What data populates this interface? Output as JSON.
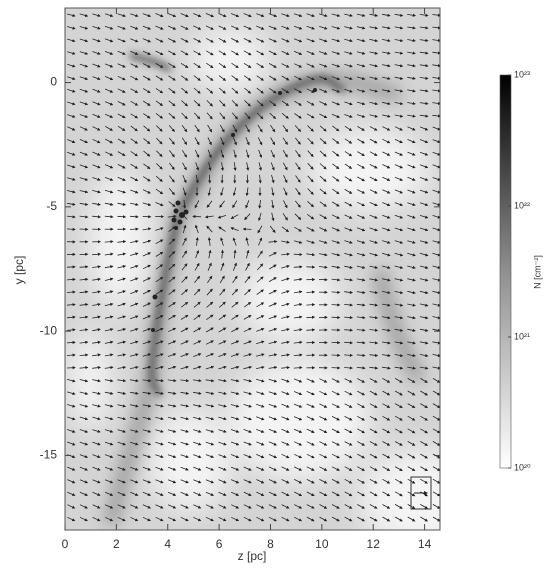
{
  "chart_data": {
    "type": "image",
    "xlabel": "z [pc]",
    "ylabel": "y [pc]",
    "xlim": [
      0,
      14.6
    ],
    "ylim": [
      -18,
      3
    ],
    "xticks": [
      0,
      2,
      4,
      6,
      8,
      10,
      12,
      14
    ],
    "yticks": [
      0,
      -5,
      -10,
      -15
    ],
    "colorbar": {
      "label": "N [cm⁻²]",
      "clim": [
        1e+20,
        1e+23
      ],
      "log": true,
      "ticks": [
        {
          "value": 1e+20,
          "label": "10²⁰"
        },
        {
          "value": 1e+21,
          "label": "10²¹"
        },
        {
          "value": 1e+22,
          "label": "10²²"
        },
        {
          "value": 1e+23,
          "label": "10²³"
        }
      ],
      "colors": [
        "#ffffff",
        "#000000"
      ]
    }
  }
}
